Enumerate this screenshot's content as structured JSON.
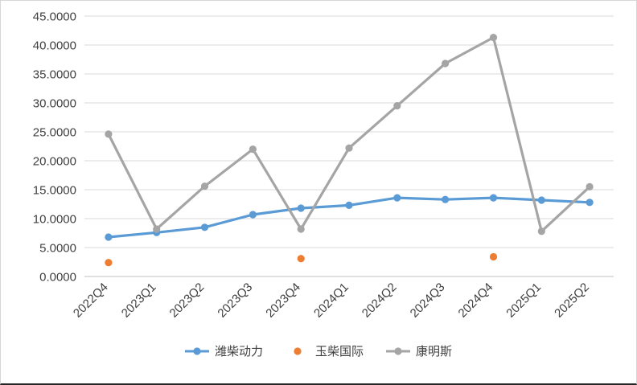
{
  "chart_data": {
    "type": "line",
    "title": "",
    "xlabel": "",
    "ylabel": "",
    "categories": [
      "2022Q4",
      "2023Q1",
      "2023Q2",
      "2023Q3",
      "2023Q4",
      "2024Q1",
      "2024Q2",
      "2024Q3",
      "2024Q4",
      "2025Q1",
      "2025Q2"
    ],
    "series": [
      {
        "name": "潍柴动力",
        "color": "#5B9BD5",
        "show_line": true,
        "values": [
          6.8,
          7.6,
          8.5,
          10.7,
          11.8,
          12.3,
          13.6,
          13.3,
          13.6,
          13.2,
          12.8
        ]
      },
      {
        "name": "玉柴国际",
        "color": "#ED7D31",
        "show_line": false,
        "values": [
          2.4,
          null,
          null,
          null,
          3.1,
          null,
          null,
          null,
          3.4,
          null,
          null
        ]
      },
      {
        "name": "康明斯",
        "color": "#A5A5A5",
        "show_line": true,
        "values": [
          24.6,
          8.2,
          15.6,
          22.0,
          8.2,
          22.2,
          29.5,
          36.8,
          41.3,
          7.8,
          15.5
        ]
      }
    ],
    "ylim": [
      0,
      45
    ],
    "ytick_step": 5,
    "ytick_decimals": 4,
    "grid": true,
    "legend_position": "bottom"
  },
  "colors": {
    "grid": "#D9D9D9",
    "axis": "#BFBFBF",
    "tick_label": "#404040",
    "background": "#FFFFFF",
    "border": "#D6D6D6"
  }
}
